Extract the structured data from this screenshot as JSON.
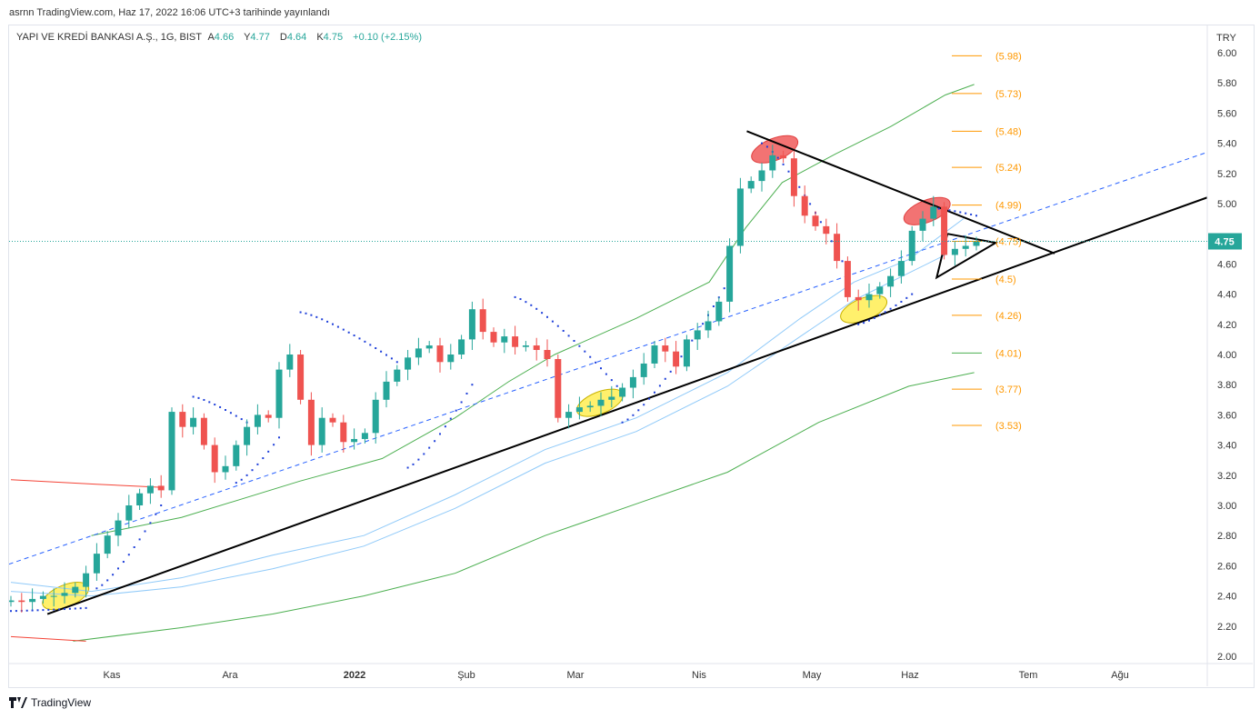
{
  "header": {
    "published": "asrnn TradingView.com, Haz 17, 2022 16:06 UTC+3 tarihinde yayınlandı",
    "symbol": "YAPI VE KREDİ BANKASI A.Ş., 1G, BIST",
    "o_label": "A",
    "o": "4.66",
    "h_label": "Y",
    "h": "4.77",
    "l_label": "D",
    "l": "4.64",
    "c_label": "K",
    "c": "4.75",
    "change": "+0.10 (+2.15%)"
  },
  "footer": {
    "brand": "TradingView"
  },
  "colors": {
    "up": "#26a69a",
    "down": "#ef5350",
    "fib": "#ff9800",
    "ma_green": "#4caf50",
    "ma_blue": "#90caf9",
    "ma_red": "#f44336",
    "dashed": "#2962ff"
  },
  "chart_data": {
    "type": "candlestick",
    "currency": "TRY",
    "last_price": "4.75",
    "ylim": [
      2.0,
      6.0
    ],
    "yticks": [
      "2.00",
      "2.20",
      "2.40",
      "2.60",
      "2.80",
      "3.00",
      "3.20",
      "3.40",
      "3.60",
      "3.80",
      "4.00",
      "4.20",
      "4.40",
      "4.60",
      "4.80",
      "5.00",
      "5.20",
      "5.40",
      "5.60",
      "5.80",
      "6.00"
    ],
    "xticks": [
      {
        "label": "Kas",
        "bold": false
      },
      {
        "label": "Ara",
        "bold": false
      },
      {
        "label": "2022",
        "bold": true
      },
      {
        "label": "Şub",
        "bold": false
      },
      {
        "label": "Mar",
        "bold": false
      },
      {
        "label": "Nis",
        "bold": false
      },
      {
        "label": "May",
        "bold": false
      },
      {
        "label": "Haz",
        "bold": false
      },
      {
        "label": "Tem",
        "bold": false
      },
      {
        "label": "Ağu",
        "bold": false
      }
    ],
    "closes": [
      2.37,
      2.36,
      2.38,
      2.4,
      2.4,
      2.42,
      2.46,
      2.55,
      2.68,
      2.8,
      2.9,
      3.0,
      3.08,
      3.13,
      3.1,
      3.62,
      3.52,
      3.58,
      3.4,
      3.22,
      3.26,
      3.4,
      3.52,
      3.6,
      3.58,
      3.9,
      4.0,
      3.7,
      3.4,
      3.58,
      3.55,
      3.42,
      3.44,
      3.48,
      3.7,
      3.82,
      3.9,
      3.98,
      4.04,
      4.06,
      3.95,
      4.0,
      4.1,
      4.3,
      4.15,
      4.08,
      4.12,
      4.05,
      4.06,
      4.03,
      3.97,
      3.58,
      3.62,
      3.65,
      3.66,
      3.7,
      3.72,
      3.78,
      3.85,
      3.94,
      4.06,
      4.02,
      3.92,
      4.1,
      4.16,
      4.22,
      4.35,
      4.72,
      5.1,
      5.15,
      5.22,
      5.32,
      5.3,
      5.05,
      4.92,
      4.85,
      4.8,
      4.62,
      4.38,
      4.36,
      4.4,
      4.45,
      4.52,
      4.62,
      4.82,
      4.9,
      4.98,
      4.66,
      4.7,
      4.72,
      4.75
    ],
    "lines": [
      {
        "name": "ma-green-upper",
        "style": "green",
        "points": [
          [
            7.5,
            2.8
          ],
          [
            15.9,
            2.92
          ],
          [
            26.9,
            3.16
          ],
          [
            34.6,
            3.31
          ],
          [
            41.4,
            3.58
          ],
          [
            46.4,
            3.82
          ],
          [
            50.7,
            4.0
          ],
          [
            58.3,
            4.24
          ],
          [
            65.1,
            4.48
          ],
          [
            68.5,
            4.84
          ],
          [
            71.9,
            5.14
          ],
          [
            76.9,
            5.33
          ],
          [
            82.0,
            5.51
          ],
          [
            87.1,
            5.72
          ],
          [
            89.8,
            5.79
          ]
        ]
      },
      {
        "name": "ma-green-lower",
        "style": "green",
        "points": [
          [
            5.8,
            2.1
          ],
          [
            15.9,
            2.19
          ],
          [
            24.4,
            2.28
          ],
          [
            32.9,
            2.4
          ],
          [
            41.4,
            2.55
          ],
          [
            49.8,
            2.8
          ],
          [
            58.3,
            3.01
          ],
          [
            66.8,
            3.22
          ],
          [
            75.3,
            3.55
          ],
          [
            83.7,
            3.79
          ],
          [
            89.8,
            3.88
          ]
        ]
      },
      {
        "name": "ma-red-upper",
        "style": "red",
        "points": [
          [
            0,
            3.17
          ],
          [
            8,
            3.14
          ],
          [
            14,
            3.12
          ]
        ]
      },
      {
        "name": "ma-red-lower",
        "style": "red",
        "points": [
          [
            0,
            2.13
          ],
          [
            7,
            2.1
          ]
        ]
      },
      {
        "name": "ma-blue-upper",
        "style": "blue",
        "points": [
          [
            0,
            2.49
          ],
          [
            7.5,
            2.43
          ],
          [
            15.9,
            2.52
          ],
          [
            24.4,
            2.67
          ],
          [
            32.9,
            2.8
          ],
          [
            41.4,
            3.07
          ],
          [
            49.8,
            3.37
          ],
          [
            58.3,
            3.58
          ],
          [
            66.8,
            3.88
          ],
          [
            73.6,
            4.24
          ],
          [
            78.6,
            4.48
          ],
          [
            83.7,
            4.63
          ],
          [
            88.8,
            4.9
          ]
        ]
      },
      {
        "name": "ma-blue-lower",
        "style": "blue",
        "points": [
          [
            0,
            2.43
          ],
          [
            7.5,
            2.4
          ],
          [
            15.9,
            2.46
          ],
          [
            24.4,
            2.58
          ],
          [
            32.9,
            2.73
          ],
          [
            41.4,
            2.98
          ],
          [
            49.8,
            3.28
          ],
          [
            58.3,
            3.49
          ],
          [
            66.8,
            3.79
          ],
          [
            73.6,
            4.12
          ],
          [
            78.6,
            4.36
          ],
          [
            83.7,
            4.54
          ],
          [
            87.1,
            4.66
          ]
        ]
      },
      {
        "name": "regression-dashed",
        "style": "dashed",
        "points": [
          [
            -0.2,
            2.61
          ],
          [
            111.5,
            5.34
          ]
        ]
      },
      {
        "name": "support-trendline",
        "style": "black",
        "points": [
          [
            3.4,
            2.28
          ],
          [
            111.5,
            5.04
          ]
        ]
      },
      {
        "name": "resistance-trendline",
        "style": "black",
        "points": [
          [
            68.6,
            5.48
          ],
          [
            97.3,
            4.67
          ]
        ]
      },
      {
        "name": "triangle-pattern",
        "style": "black",
        "points": [
          [
            87.3,
            4.8
          ],
          [
            91.8,
            4.74
          ],
          [
            86.3,
            4.51
          ]
        ]
      }
    ],
    "psar_segments": [
      [
        0,
        7,
        2.3,
        2.32
      ],
      [
        8,
        14,
        2.45,
        3.0
      ],
      [
        17,
        22,
        3.72,
        3.55
      ],
      [
        21,
        25,
        3.15,
        3.45
      ],
      [
        27,
        36,
        4.28,
        3.95
      ],
      [
        37,
        43,
        3.25,
        3.8
      ],
      [
        47,
        57,
        4.38,
        3.75
      ],
      [
        57,
        67,
        3.55,
        4.5
      ],
      [
        70,
        78,
        5.4,
        4.55
      ],
      [
        79,
        84,
        4.2,
        4.4
      ],
      [
        86,
        90,
        4.97,
        4.92
      ]
    ],
    "highlights": [
      {
        "color": "yellow",
        "center": [
          5.1,
          2.4
        ]
      },
      {
        "color": "yellow",
        "center": [
          54.9,
          3.68
        ]
      },
      {
        "color": "yellow",
        "center": [
          79.5,
          4.3
        ]
      },
      {
        "color": "red",
        "center": [
          71.2,
          5.36
        ]
      },
      {
        "color": "red",
        "center": [
          85.4,
          4.95
        ]
      }
    ],
    "fib_levels": [
      {
        "value": 5.98,
        "label": "(5.98)"
      },
      {
        "value": 5.73,
        "label": "(5.73)"
      },
      {
        "value": 5.48,
        "label": "(5.48)"
      },
      {
        "value": 5.24,
        "label": "(5.24)"
      },
      {
        "value": 4.99,
        "label": "(4.99)"
      },
      {
        "value": 4.75,
        "label": "(4.75)"
      },
      {
        "value": 4.5,
        "label": "(4.5)"
      },
      {
        "value": 4.26,
        "label": "(4.26)"
      },
      {
        "value": 4.01,
        "label": "(4.01)"
      },
      {
        "value": 3.77,
        "label": "(3.77)"
      },
      {
        "value": 3.53,
        "label": "(3.53)"
      }
    ]
  }
}
